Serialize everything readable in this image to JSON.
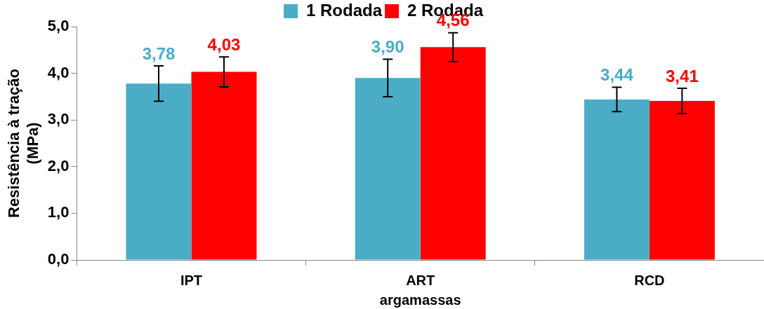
{
  "chart_data": {
    "type": "bar",
    "xlabel": "argamassas",
    "ylabel": "Resistência à tração (MPa)",
    "categories": [
      "IPT",
      "ART",
      "RCD"
    ],
    "series": [
      {
        "name": "1 Rodada",
        "color": "#4bacc6",
        "values": [
          3.78,
          3.9,
          3.44
        ],
        "errors": [
          0.38,
          0.4,
          0.26
        ],
        "value_labels": [
          "3,78",
          "3,90",
          "3,44"
        ]
      },
      {
        "name": "2 Rodada",
        "color": "#ff0000",
        "values": [
          4.03,
          4.56,
          3.41
        ],
        "errors": [
          0.32,
          0.31,
          0.27
        ],
        "value_labels": [
          "4,03",
          "4,56",
          "3,41"
        ]
      }
    ],
    "ylim": [
      0,
      5
    ],
    "yticks": [
      {
        "value": 0,
        "label": "0,0"
      },
      {
        "value": 1,
        "label": "1,0"
      },
      {
        "value": 2,
        "label": "2,0"
      },
      {
        "value": 3,
        "label": "3,0"
      },
      {
        "value": 4,
        "label": "4,0"
      },
      {
        "value": 5,
        "label": "5,0"
      }
    ],
    "grid": false,
    "legend": "top"
  }
}
